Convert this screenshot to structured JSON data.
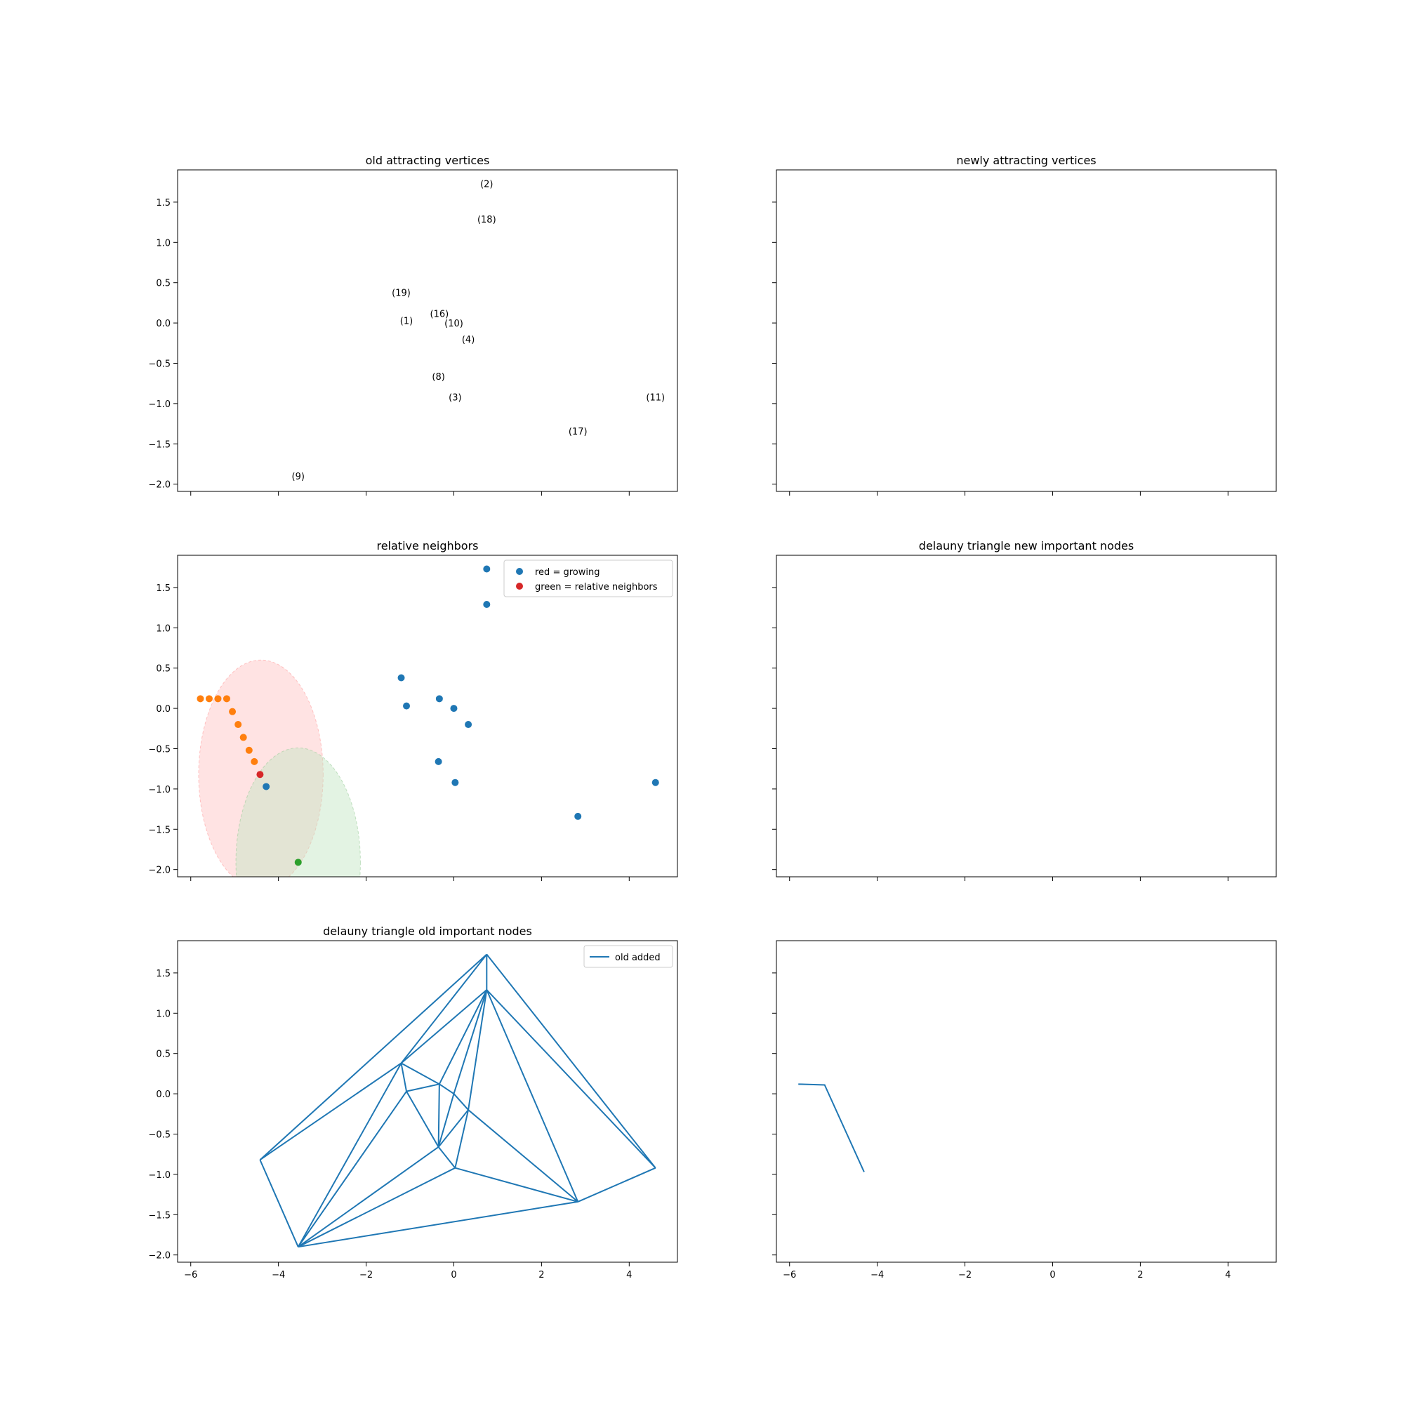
{
  "colors": {
    "blue": "#1f77b4",
    "orange": "#ff7f0e",
    "red": "#d62728",
    "green": "#2ca02c",
    "pink_fill": "#ffc0c0",
    "green_fill": "#c0e4c0"
  },
  "xticks": [
    -6,
    -4,
    -2,
    0,
    2,
    4
  ],
  "yticks": [
    1.5,
    1.0,
    0.5,
    0.0,
    -0.5,
    -1.0,
    -1.5,
    -2.0
  ],
  "xlim": [
    -6.3,
    5.1
  ],
  "ylim": [
    -2.09,
    1.9
  ],
  "chart_data": [
    {
      "type": "scatter",
      "title": "old attracting vertices",
      "annotations": [
        {
          "label": "(2)",
          "x": 0.75,
          "y": 1.73
        },
        {
          "label": "(18)",
          "x": 0.75,
          "y": 1.29
        },
        {
          "label": "(19)",
          "x": -1.2,
          "y": 0.38
        },
        {
          "label": "(1)",
          "x": -1.08,
          "y": 0.03
        },
        {
          "label": "(16)",
          "x": -0.33,
          "y": 0.12
        },
        {
          "label": "(10)",
          "x": 0.0,
          "y": 0.0
        },
        {
          "label": "(4)",
          "x": 0.33,
          "y": -0.2
        },
        {
          "label": "(8)",
          "x": -0.35,
          "y": -0.66
        },
        {
          "label": "(3)",
          "x": 0.03,
          "y": -0.92
        },
        {
          "label": "(11)",
          "x": 4.6,
          "y": -0.92
        },
        {
          "label": "(17)",
          "x": 2.83,
          "y": -1.34
        },
        {
          "label": "(9)",
          "x": -3.55,
          "y": -1.9
        }
      ]
    },
    {
      "type": "scatter",
      "title": "newly attracting vertices",
      "series": []
    },
    {
      "type": "scatter",
      "title": "relative neighbors",
      "legend": {
        "position": "upper right",
        "entries": [
          {
            "label": "red = growing",
            "color": "#1f77b4"
          },
          {
            "label": "green = relative neighbors",
            "color": "#d62728"
          }
        ]
      },
      "ellipses": [
        {
          "color": "pink",
          "cx": -4.4,
          "cy": -0.82,
          "rx": 1.42,
          "ry": 1.42
        },
        {
          "color": "green",
          "cx": -3.55,
          "cy": -1.91,
          "rx": 1.42,
          "ry": 1.42
        }
      ],
      "series": [
        {
          "color": "blue",
          "points": [
            [
              0.75,
              1.73
            ],
            [
              0.75,
              1.29
            ],
            [
              -1.2,
              0.38
            ],
            [
              -1.08,
              0.03
            ],
            [
              -0.33,
              0.12
            ],
            [
              0.0,
              0.0
            ],
            [
              0.33,
              -0.2
            ],
            [
              -0.35,
              -0.66
            ],
            [
              0.03,
              -0.92
            ],
            [
              4.6,
              -0.92
            ],
            [
              2.83,
              -1.34
            ],
            [
              -4.28,
              -0.97
            ]
          ]
        },
        {
          "color": "orange",
          "points": [
            [
              -5.78,
              0.12
            ],
            [
              -5.58,
              0.12
            ],
            [
              -5.38,
              0.12
            ],
            [
              -5.18,
              0.12
            ],
            [
              -5.05,
              -0.04
            ],
            [
              -4.92,
              -0.2
            ],
            [
              -4.8,
              -0.36
            ],
            [
              -4.67,
              -0.52
            ],
            [
              -4.55,
              -0.66
            ]
          ]
        },
        {
          "color": "red",
          "points": [
            [
              -4.42,
              -0.82
            ]
          ]
        },
        {
          "color": "green",
          "points": [
            [
              -3.55,
              -1.91
            ]
          ]
        }
      ]
    },
    {
      "type": "line",
      "title": "delauny triangle new important nodes",
      "series": []
    },
    {
      "type": "line",
      "title": "delauny triangle old important nodes",
      "legend": {
        "position": "upper right",
        "entries": [
          {
            "label": "old added",
            "color": "#1f77b4"
          }
        ]
      },
      "nodes": {
        "n2": [
          0.75,
          1.73
        ],
        "n18": [
          0.75,
          1.29
        ],
        "n19": [
          -1.2,
          0.38
        ],
        "n1": [
          -1.08,
          0.03
        ],
        "n16": [
          -0.33,
          0.12
        ],
        "n10": [
          0.0,
          0.0
        ],
        "n4": [
          0.33,
          -0.2
        ],
        "n8": [
          -0.35,
          -0.66
        ],
        "n3": [
          0.03,
          -0.92
        ],
        "n11": [
          4.6,
          -0.92
        ],
        "n17": [
          2.83,
          -1.34
        ],
        "n9": [
          -3.55,
          -1.9
        ],
        "nL": [
          -4.42,
          -0.82
        ]
      },
      "edges": [
        [
          "nL",
          "n2"
        ],
        [
          "nL",
          "n19"
        ],
        [
          "nL",
          "n9"
        ],
        [
          "n2",
          "n18"
        ],
        [
          "n2",
          "n19"
        ],
        [
          "n2",
          "n11"
        ],
        [
          "n18",
          "n19"
        ],
        [
          "n18",
          "n16"
        ],
        [
          "n18",
          "n10"
        ],
        [
          "n18",
          "n4"
        ],
        [
          "n18",
          "n17"
        ],
        [
          "n18",
          "n11"
        ],
        [
          "n19",
          "n1"
        ],
        [
          "n19",
          "n16"
        ],
        [
          "n19",
          "n9"
        ],
        [
          "n1",
          "n16"
        ],
        [
          "n1",
          "n8"
        ],
        [
          "n1",
          "n9"
        ],
        [
          "n16",
          "n10"
        ],
        [
          "n16",
          "n8"
        ],
        [
          "n10",
          "n4"
        ],
        [
          "n10",
          "n8"
        ],
        [
          "n4",
          "n8"
        ],
        [
          "n4",
          "n3"
        ],
        [
          "n4",
          "n17"
        ],
        [
          "n8",
          "n3"
        ],
        [
          "n8",
          "n9"
        ],
        [
          "n3",
          "n9"
        ],
        [
          "n3",
          "n17"
        ],
        [
          "n9",
          "n17"
        ],
        [
          "n17",
          "n11"
        ]
      ]
    },
    {
      "type": "line",
      "title": "",
      "series": [
        {
          "color": "blue",
          "points": [
            [
              -5.8,
              0.12
            ],
            [
              -5.2,
              0.11
            ],
            [
              -4.3,
              -0.97
            ]
          ]
        }
      ]
    }
  ]
}
